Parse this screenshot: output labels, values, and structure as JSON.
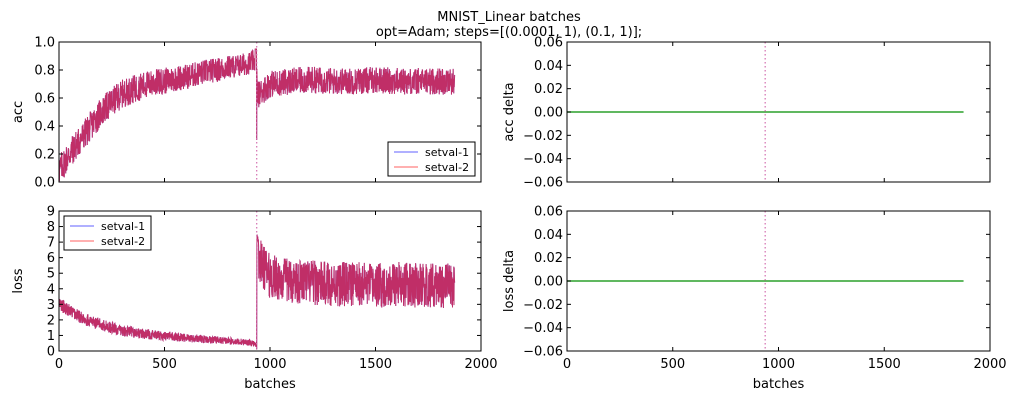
{
  "figure": {
    "title_line1": "MNIST_Linear batches",
    "title_line2": "opt=Adam; steps=[(0.0001, 1), (0.1, 1)];"
  },
  "colors": {
    "series1": "#4444ff",
    "series2": "#ff4444",
    "overlap": "#c2285f",
    "delta": "#2ca02c",
    "marker": "#d36fb0"
  },
  "chart_data": [
    {
      "id": "acc",
      "type": "line",
      "ylabel": "acc",
      "xlabel": "",
      "xlim": [
        0,
        2000
      ],
      "ylim": [
        0,
        1.0
      ],
      "yticks": [
        "0.0",
        "0.2",
        "0.4",
        "0.6",
        "0.8",
        "1.0"
      ],
      "xticks": [],
      "vline_x": 937,
      "legend": {
        "position": "lower-right",
        "entries": [
          "setval-1",
          "setval-2"
        ]
      },
      "series": [
        {
          "name": "setval-1",
          "x": [
            0,
            50,
            100,
            150,
            200,
            250,
            300,
            350,
            400,
            450,
            500,
            550,
            600,
            650,
            700,
            750,
            800,
            850,
            900,
            936,
            940,
            1000,
            1100,
            1200,
            1300,
            1400,
            1500,
            1600,
            1700,
            1800,
            1875
          ],
          "y": [
            0.08,
            0.2,
            0.3,
            0.4,
            0.5,
            0.57,
            0.63,
            0.66,
            0.69,
            0.71,
            0.72,
            0.74,
            0.75,
            0.77,
            0.79,
            0.8,
            0.82,
            0.83,
            0.85,
            0.87,
            0.62,
            0.7,
            0.72,
            0.73,
            0.72,
            0.72,
            0.73,
            0.72,
            0.72,
            0.72,
            0.72
          ]
        },
        {
          "name": "setval-2",
          "x": [
            0,
            50,
            100,
            150,
            200,
            250,
            300,
            350,
            400,
            450,
            500,
            550,
            600,
            650,
            700,
            750,
            800,
            850,
            900,
            936,
            940,
            1000,
            1100,
            1200,
            1300,
            1400,
            1500,
            1600,
            1700,
            1800,
            1875
          ],
          "y": [
            0.08,
            0.2,
            0.3,
            0.4,
            0.5,
            0.57,
            0.63,
            0.66,
            0.69,
            0.71,
            0.72,
            0.74,
            0.75,
            0.77,
            0.79,
            0.8,
            0.82,
            0.83,
            0.85,
            0.87,
            0.62,
            0.7,
            0.72,
            0.73,
            0.72,
            0.72,
            0.73,
            0.72,
            0.72,
            0.72,
            0.72
          ]
        }
      ]
    },
    {
      "id": "acc-delta",
      "type": "line",
      "ylabel": "acc delta",
      "xlabel": "",
      "xlim": [
        0,
        2000
      ],
      "ylim": [
        -0.06,
        0.06
      ],
      "yticks": [
        "−0.06",
        "−0.04",
        "−0.02",
        "0.00",
        "0.02",
        "0.04",
        "0.06"
      ],
      "xticks": [],
      "vline_x": 937,
      "series": [
        {
          "x": [
            0,
            1875
          ],
          "y": [
            0,
            0
          ]
        }
      ]
    },
    {
      "id": "loss",
      "type": "line",
      "ylabel": "loss",
      "xlabel": "batches",
      "xlim": [
        0,
        2000
      ],
      "ylim": [
        0,
        9
      ],
      "yticks": [
        "0",
        "1",
        "2",
        "3",
        "4",
        "5",
        "6",
        "7",
        "8",
        "9"
      ],
      "xticks": [
        "0",
        "500",
        "1000",
        "1500",
        "2000"
      ],
      "vline_x": 937,
      "legend": {
        "position": "upper-left",
        "entries": [
          "setval-1",
          "setval-2"
        ]
      },
      "series": [
        {
          "name": "setval-1",
          "x": [
            0,
            50,
            100,
            150,
            200,
            250,
            300,
            350,
            400,
            500,
            600,
            700,
            800,
            900,
            936,
            940,
            1000,
            1100,
            1200,
            1300,
            1400,
            1500,
            1600,
            1700,
            1800,
            1875
          ],
          "y": [
            3.0,
            2.6,
            2.2,
            1.9,
            1.7,
            1.5,
            1.3,
            1.2,
            1.1,
            0.95,
            0.85,
            0.75,
            0.65,
            0.55,
            0.4,
            6.0,
            4.8,
            4.5,
            4.4,
            4.3,
            4.3,
            4.2,
            4.3,
            4.2,
            4.2,
            4.2
          ]
        },
        {
          "name": "setval-2",
          "x": [
            0,
            50,
            100,
            150,
            200,
            250,
            300,
            350,
            400,
            500,
            600,
            700,
            800,
            900,
            936,
            940,
            1000,
            1100,
            1200,
            1300,
            1400,
            1500,
            1600,
            1700,
            1800,
            1875
          ],
          "y": [
            3.0,
            2.6,
            2.2,
            1.9,
            1.7,
            1.5,
            1.3,
            1.2,
            1.1,
            0.95,
            0.85,
            0.75,
            0.65,
            0.55,
            0.4,
            6.0,
            4.8,
            4.5,
            4.4,
            4.3,
            4.3,
            4.2,
            4.3,
            4.2,
            4.2,
            4.2
          ]
        }
      ]
    },
    {
      "id": "loss-delta",
      "type": "line",
      "ylabel": "loss delta",
      "xlabel": "batches",
      "xlim": [
        0,
        2000
      ],
      "ylim": [
        -0.06,
        0.06
      ],
      "yticks": [
        "−0.06",
        "−0.04",
        "−0.02",
        "0.00",
        "0.02",
        "0.04",
        "0.06"
      ],
      "xticks": [
        "0",
        "500",
        "1000",
        "1500",
        "2000"
      ],
      "vline_x": 937,
      "series": [
        {
          "x": [
            0,
            1875
          ],
          "y": [
            0,
            0
          ]
        }
      ]
    }
  ]
}
